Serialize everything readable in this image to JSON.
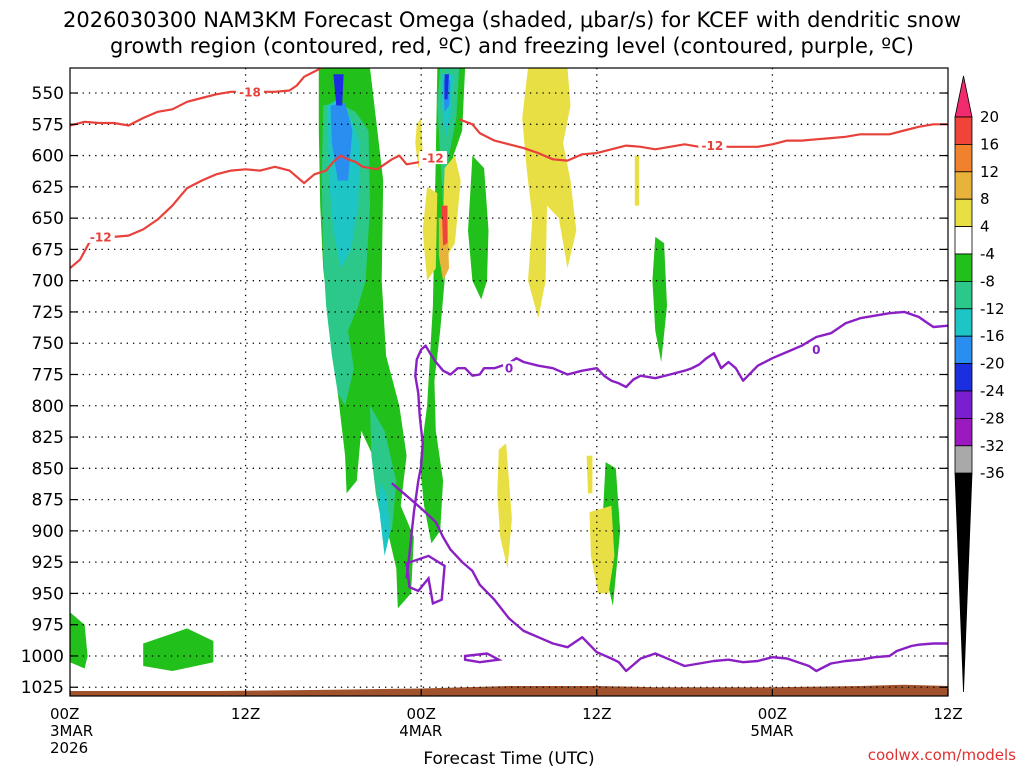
{
  "chart_data": {
    "type": "heatmap",
    "title_line1": "2026030300 NAM3KM Forecast Omega (shaded, μbar/s) for KCEF with dendritic snow",
    "title_line2": "growth region (contoured, red, ºC) and freezing level (contoured, purple, ºC)",
    "xlabel": "Forecast Time (UTC)",
    "credit": "coolwx.com/models",
    "y_levels": [
      550,
      575,
      600,
      625,
      650,
      675,
      700,
      725,
      750,
      775,
      800,
      825,
      850,
      875,
      900,
      925,
      950,
      975,
      1000,
      1025
    ],
    "y_tick_labels": [
      "550",
      "575",
      "600",
      "625",
      "650",
      "675",
      "700",
      "725",
      "750",
      "775",
      "800",
      "825",
      "850",
      "875",
      "900",
      "925",
      "950",
      "975",
      "1000",
      "1025"
    ],
    "ylim": [
      530,
      1032
    ],
    "x_hours": [
      0,
      12,
      24,
      36,
      48,
      60
    ],
    "xlim": [
      0,
      60
    ],
    "x_ticks": [
      {
        "top": "00Z",
        "mid": "3MAR",
        "bot": "2026"
      },
      {
        "top": "12Z",
        "mid": "",
        "bot": ""
      },
      {
        "top": "00Z",
        "mid": "4MAR",
        "bot": ""
      },
      {
        "top": "12Z",
        "mid": "",
        "bot": ""
      },
      {
        "top": "00Z",
        "mid": "5MAR",
        "bot": ""
      },
      {
        "top": "12Z",
        "mid": "",
        "bot": ""
      }
    ],
    "colorbar": {
      "labels": [
        "20",
        "16",
        "12",
        "8",
        "4",
        "-4",
        "-8",
        "-12",
        "-16",
        "-20",
        "-24",
        "-28",
        "-32",
        "-36"
      ],
      "colors": [
        "#f22a6e",
        "#f0443a",
        "#f0822e",
        "#e8b33a",
        "#e8df44",
        "#ffffff",
        "#22c01a",
        "#2cc889",
        "#1ec5c5",
        "#2a8ef0",
        "#1b2fe0",
        "#7a1fd0",
        "#9b1ac0",
        "#a9a9a9",
        "#000000"
      ]
    },
    "contour_labels": {
      "red_minus18": "-18",
      "red_minus12": "-12",
      "purple_zero": "0"
    },
    "series": [
      {
        "name": "dgz_-18C",
        "color": "#e8403a",
        "x": [
          0,
          1,
          2,
          3,
          4,
          5,
          6,
          7,
          8,
          9,
          10,
          11,
          12,
          13,
          14,
          15,
          15.5,
          16,
          16.5,
          17,
          17.5
        ],
        "y": [
          576,
          573,
          574,
          574,
          576,
          570,
          565,
          563,
          557,
          554,
          551,
          549,
          549,
          549,
          549,
          548,
          544,
          537,
          534,
          531,
          527
        ]
      },
      {
        "name": "dgz_-12C_a",
        "color": "#e8403a",
        "x": [
          0,
          0.7,
          1.3,
          2,
          3,
          4,
          5,
          6,
          7,
          8,
          9,
          10,
          11,
          12,
          13,
          14,
          15,
          16,
          16.7,
          17.5,
          18,
          18.5,
          19,
          19.5,
          20,
          21,
          22,
          22.5,
          23,
          24,
          25,
          25.6
        ],
        "y": [
          690,
          683,
          670,
          662,
          665,
          664,
          659,
          651,
          640,
          626,
          620,
          615,
          612,
          611,
          612,
          609,
          612,
          622,
          615,
          612,
          605,
          600,
          603,
          605,
          609,
          611,
          603,
          600,
          607,
          605,
          602,
          600
        ]
      },
      {
        "name": "dgz_-12C_b",
        "color": "#e8403a",
        "x": [
          26.6,
          27.5,
          28,
          29,
          30,
          31,
          32,
          33,
          34,
          35,
          36,
          37,
          38,
          39,
          40,
          41,
          42,
          43,
          44,
          45,
          46,
          47,
          48,
          49,
          50,
          51,
          52,
          53,
          54,
          55,
          56,
          57,
          58,
          59,
          60
        ],
        "y": [
          571,
          575,
          582,
          588,
          591,
          594,
          598,
          603,
          604,
          599,
          598,
          595,
          592,
          593,
          595,
          593,
          591,
          593,
          592,
          593,
          593,
          593,
          591,
          588,
          588,
          587,
          586,
          585,
          583,
          583,
          583,
          580,
          577,
          575,
          575
        ]
      }
    ],
    "freezing_level": {
      "name": "0C",
      "color": "#8a1fc4",
      "x": [
        23,
        23.2,
        23.5,
        23.8,
        24,
        24.1,
        23.9,
        23.8,
        23.6,
        23.7,
        24,
        24.3,
        24.6,
        25,
        25.5,
        26,
        26.5,
        27,
        27.5,
        28,
        28.3,
        29,
        30,
        30.5,
        31,
        32,
        33,
        34,
        35,
        36,
        36.5,
        37,
        37.5,
        38,
        38.5,
        39,
        40,
        41,
        42,
        42.5,
        43,
        43.5,
        44,
        44.5,
        45,
        45.5,
        46,
        47,
        48,
        49,
        50,
        51,
        52,
        52.5,
        53,
        53.5,
        54,
        55,
        56,
        57,
        57.5,
        58,
        58.5,
        59,
        60
      ],
      "y": [
        938,
        918,
        885,
        860,
        848,
        830,
        808,
        790,
        776,
        763,
        755,
        752,
        758,
        765,
        772,
        775,
        770,
        770,
        776,
        775,
        770,
        770,
        766,
        762,
        765,
        768,
        770,
        775,
        772,
        770,
        776,
        780,
        782,
        785,
        779,
        776,
        778,
        775,
        772,
        770,
        767,
        762,
        758,
        770,
        765,
        770,
        780,
        768,
        762,
        757,
        752,
        745,
        742,
        738,
        734,
        732,
        730,
        728,
        726,
        725,
        727,
        729,
        733,
        737,
        736
      ]
    },
    "freezing_level_lower": {
      "name": "0C_lower",
      "color": "#8a1fc4",
      "x": [
        22,
        23,
        24,
        25,
        25.5,
        26,
        26.8,
        27.5,
        28,
        29,
        30,
        31,
        32,
        33,
        34,
        35,
        36,
        37,
        37.5,
        38,
        39,
        40,
        41,
        42,
        43,
        44,
        45,
        46,
        47,
        48,
        49,
        50,
        50.5,
        51,
        52,
        53,
        54,
        55,
        56,
        56.5,
        57,
        57.5,
        58,
        59,
        60
      ],
      "y": [
        862,
        872,
        882,
        893,
        905,
        915,
        925,
        932,
        943,
        955,
        970,
        980,
        985,
        990,
        993,
        985,
        997,
        1002,
        1005,
        1012,
        1002,
        998,
        1003,
        1008,
        1006,
        1004,
        1003,
        1005,
        1004,
        1001,
        1002,
        1006,
        1008,
        1012,
        1006,
        1004,
        1003,
        1001,
        1000,
        996,
        994,
        992,
        991,
        990,
        990
      ]
    }
  }
}
